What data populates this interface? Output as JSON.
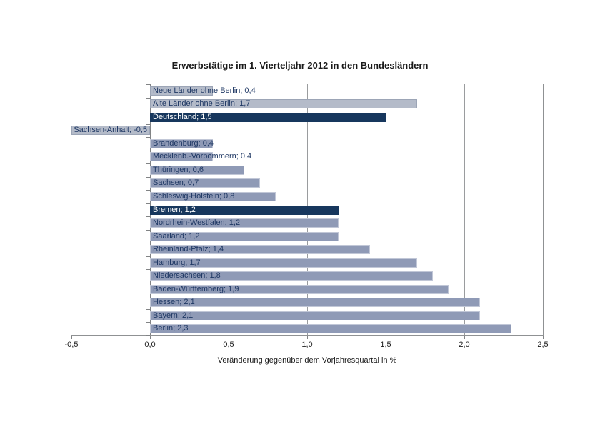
{
  "chart_data": {
    "type": "bar",
    "orientation": "horizontal",
    "title": "Erwerbstätige im 1. Vierteljahr 2012 in den Bundesländern",
    "xlabel": "Veränderung gegenüber dem Vorjahresquartal in %",
    "xlim": [
      -0.5,
      2.5
    ],
    "grid": "vertical-gridlines-on",
    "legend": "none",
    "x_ticks": [
      {
        "value": -0.5,
        "label": "-0,5"
      },
      {
        "value": 0.0,
        "label": "0,0"
      },
      {
        "value": 0.5,
        "label": "0,5"
      },
      {
        "value": 1.0,
        "label": "1,0"
      },
      {
        "value": 1.5,
        "label": "1,5"
      },
      {
        "value": 2.0,
        "label": "2,0"
      },
      {
        "value": 2.5,
        "label": "2,5"
      }
    ],
    "bars": [
      {
        "name": "Neue Länder ohne Berlin",
        "value": 0.4,
        "label": "Neue Länder ohne Berlin; 0,4",
        "group": "aggregate"
      },
      {
        "name": "Alte Länder ohne Berlin",
        "value": 1.7,
        "label": "Alte Länder ohne Berlin; 1,7",
        "group": "aggregate"
      },
      {
        "name": "Deutschland",
        "value": 1.5,
        "label": "Deutschland; 1,5",
        "group": "highlight"
      },
      {
        "name": "Sachsen-Anhalt",
        "value": -0.5,
        "label": "Sachsen-Anhalt; -0,5",
        "group": "aggregate"
      },
      {
        "name": "Brandenburg",
        "value": 0.4,
        "label": "Brandenburg; 0,4",
        "group": "state"
      },
      {
        "name": "Mecklenb.-Vorpommern",
        "value": 0.4,
        "label": "Mecklenb.-Vorpommern; 0,4",
        "group": "state"
      },
      {
        "name": "Thüringen",
        "value": 0.6,
        "label": "Thüringen; 0,6",
        "group": "state"
      },
      {
        "name": "Sachsen",
        "value": 0.7,
        "label": "Sachsen; 0,7",
        "group": "state"
      },
      {
        "name": "Schleswig-Holstein",
        "value": 0.8,
        "label": "Schleswig-Holstein; 0,8",
        "group": "state"
      },
      {
        "name": "Bremen",
        "value": 1.2,
        "label": "Bremen; 1,2",
        "group": "highlight"
      },
      {
        "name": "Nordrhein-Westfalen",
        "value": 1.2,
        "label": "Nordrhein-Westfalen; 1,2",
        "group": "state"
      },
      {
        "name": "Saarland",
        "value": 1.2,
        "label": "Saarland; 1,2",
        "group": "state"
      },
      {
        "name": "Rheinland-Pfalz",
        "value": 1.4,
        "label": "Rheinland-Pfalz; 1,4",
        "group": "state"
      },
      {
        "name": "Hamburg",
        "value": 1.7,
        "label": "Hamburg; 1,7",
        "group": "state"
      },
      {
        "name": "Niedersachsen",
        "value": 1.8,
        "label": "Niedersachsen; 1,8",
        "group": "state"
      },
      {
        "name": "Baden-Württemberg",
        "value": 1.9,
        "label": "Baden-Württemberg; 1,9",
        "group": "state"
      },
      {
        "name": "Hessen",
        "value": 2.1,
        "label": "Hessen; 2,1",
        "group": "state"
      },
      {
        "name": "Bayern",
        "value": 2.1,
        "label": "Bayern; 2,1",
        "group": "state"
      },
      {
        "name": "Berlin",
        "value": 2.3,
        "label": "Berlin; 2,3",
        "group": "state"
      }
    ],
    "colors": {
      "aggregate": "#b4bbc9",
      "state": "#8f9ab6",
      "highlight": "#17375d",
      "label_on_light": "#1f3864",
      "label_on_dark": "#ffffff",
      "gridline": "#9a9c9e",
      "plot_border": "#8f9193"
    }
  }
}
